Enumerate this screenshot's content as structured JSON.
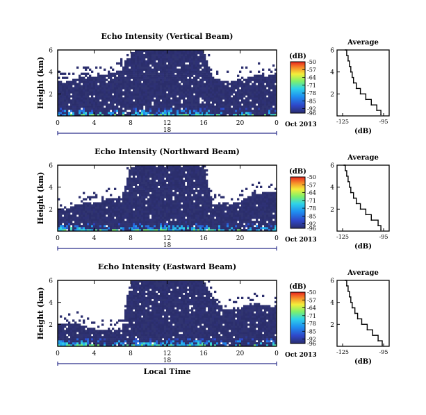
{
  "chart_data": [
    {
      "type": "heatmap",
      "title": "Echo Intensity (Vertical Beam)",
      "ylabel": "Height (km)",
      "ylim": [
        0,
        6
      ],
      "yticks": [
        "6",
        "4",
        "2"
      ],
      "xlim": [
        0,
        24
      ],
      "xticks": [
        "0",
        "4",
        "8",
        "12",
        "16",
        "20",
        "0"
      ],
      "date_axis": {
        "tick": "18",
        "label": "Oct 2013"
      },
      "colorbar": {
        "unit": "(dB)",
        "range": [
          -96,
          -50
        ],
        "ticks": [
          "-50",
          "-57",
          "-64",
          "-71",
          "-78",
          "-85",
          "-92",
          "-96"
        ]
      },
      "profile": {
        "title": "Average",
        "xlabel": "(dB)",
        "xticks": [
          "-125",
          "-95"
        ],
        "yticks": [
          "6",
          "4",
          "2"
        ],
        "x": [
          -123,
          -122,
          -121,
          -120,
          -119,
          -118,
          -117,
          -115,
          -112,
          -108,
          -104,
          -100,
          -97
        ],
        "y": [
          6.0,
          5.5,
          5.0,
          4.5,
          4.0,
          3.5,
          3.0,
          2.5,
          2.0,
          1.5,
          1.0,
          0.5,
          0.1
        ]
      }
    },
    {
      "type": "heatmap",
      "title": "Echo Intensity (Northward Beam)",
      "ylabel": "Height (km)",
      "ylim": [
        0,
        6
      ],
      "yticks": [
        "6",
        "4",
        "2"
      ],
      "xlim": [
        0,
        24
      ],
      "xticks": [
        "0",
        "4",
        "8",
        "12",
        "16",
        "20",
        "0"
      ],
      "date_axis": {
        "tick": "18",
        "label": "Oct 2013"
      },
      "colorbar": {
        "unit": "(dB)",
        "range": [
          -96,
          -50
        ],
        "ticks": [
          "-50",
          "-57",
          "-64",
          "-71",
          "-78",
          "-85",
          "-92",
          "-96"
        ]
      },
      "profile": {
        "title": "Average",
        "xlabel": "(dB)",
        "xticks": [
          "-125",
          "-95"
        ],
        "yticks": [
          "6",
          "4",
          "2"
        ],
        "x": [
          -124,
          -123,
          -122,
          -121,
          -120,
          -119,
          -117,
          -115,
          -112,
          -108,
          -104,
          -99,
          -97
        ],
        "y": [
          6.0,
          5.5,
          5.0,
          4.5,
          4.0,
          3.5,
          3.0,
          2.5,
          2.0,
          1.5,
          1.0,
          0.5,
          0.1
        ]
      }
    },
    {
      "type": "heatmap",
      "title": "Echo Intensity (Eastward Beam)",
      "ylabel": "Height (km)",
      "ylim": [
        0,
        6
      ],
      "yticks": [
        "6",
        "4",
        "2"
      ],
      "xlim": [
        0,
        24
      ],
      "xticks": [
        "0",
        "4",
        "8",
        "12",
        "16",
        "20",
        "0"
      ],
      "xlabel": "Local Time",
      "date_axis": {
        "tick": "18",
        "label": "Oct 2013"
      },
      "colorbar": {
        "unit": "(dB)",
        "range": [
          -96,
          -50
        ],
        "ticks": [
          "-50",
          "-57",
          "-64",
          "-71",
          "-78",
          "-85",
          "-92",
          "-96"
        ]
      },
      "profile": {
        "title": "Average",
        "xlabel": "(dB)",
        "xticks": [
          "-125",
          "-95"
        ],
        "yticks": [
          "6",
          "4",
          "2"
        ],
        "x": [
          -123,
          -122,
          -121,
          -120,
          -119,
          -118,
          -116,
          -114,
          -111,
          -107,
          -103,
          -99,
          -96
        ],
        "y": [
          6.0,
          5.5,
          5.0,
          4.5,
          4.0,
          3.5,
          3.0,
          2.5,
          2.0,
          1.5,
          1.0,
          0.5,
          0.1
        ]
      }
    }
  ]
}
